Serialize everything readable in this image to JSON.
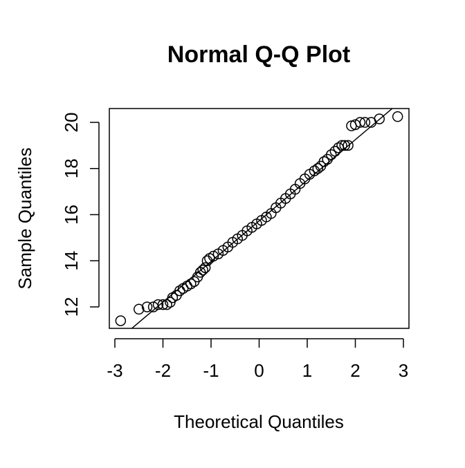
{
  "chart_data": {
    "type": "scatter",
    "title": "Normal Q-Q Plot",
    "x_label": "Theoretical Quantiles",
    "y_label": "Sample Quantiles",
    "x": [
      -2.88,
      -2.5,
      -2.33,
      -2.2,
      -2.1,
      -2.0,
      -1.92,
      -1.85,
      -1.8,
      -1.72,
      -1.65,
      -1.58,
      -1.5,
      -1.42,
      -1.35,
      -1.28,
      -1.22,
      -1.17,
      -1.12,
      -1.08,
      -1.03,
      -0.95,
      -0.85,
      -0.75,
      -0.65,
      -0.55,
      -0.45,
      -0.35,
      -0.25,
      -0.15,
      -0.05,
      0.05,
      0.15,
      0.25,
      0.35,
      0.45,
      0.55,
      0.65,
      0.75,
      0.85,
      0.95,
      1.05,
      1.15,
      1.22,
      1.28,
      1.35,
      1.42,
      1.5,
      1.58,
      1.65,
      1.72,
      1.78,
      1.85,
      1.92,
      2.0,
      2.1,
      2.2,
      2.33,
      2.5,
      2.88
    ],
    "values": [
      11.4,
      11.9,
      12.0,
      12.0,
      12.1,
      12.1,
      12.1,
      12.2,
      12.4,
      12.5,
      12.7,
      12.8,
      12.9,
      13.0,
      13.1,
      13.3,
      13.5,
      13.6,
      13.7,
      14.0,
      14.1,
      14.2,
      14.3,
      14.45,
      14.6,
      14.8,
      14.95,
      15.1,
      15.3,
      15.45,
      15.6,
      15.75,
      15.9,
      16.05,
      16.3,
      16.5,
      16.7,
      16.9,
      17.1,
      17.35,
      17.55,
      17.75,
      17.9,
      18.0,
      18.1,
      18.3,
      18.4,
      18.6,
      18.75,
      18.9,
      19.0,
      19.0,
      19.0,
      19.85,
      19.9,
      20.0,
      20.0,
      20.0,
      20.15,
      20.25
    ],
    "qqline": {
      "intercept": 15.73,
      "slope": 1.76
    },
    "xlim": [
      -3.115,
      3.115
    ],
    "ylim": [
      11.07,
      20.6
    ],
    "xticks": [
      -3,
      -2,
      -1,
      0,
      1,
      2,
      3
    ],
    "yticks": [
      12,
      14,
      16,
      18,
      20
    ]
  }
}
